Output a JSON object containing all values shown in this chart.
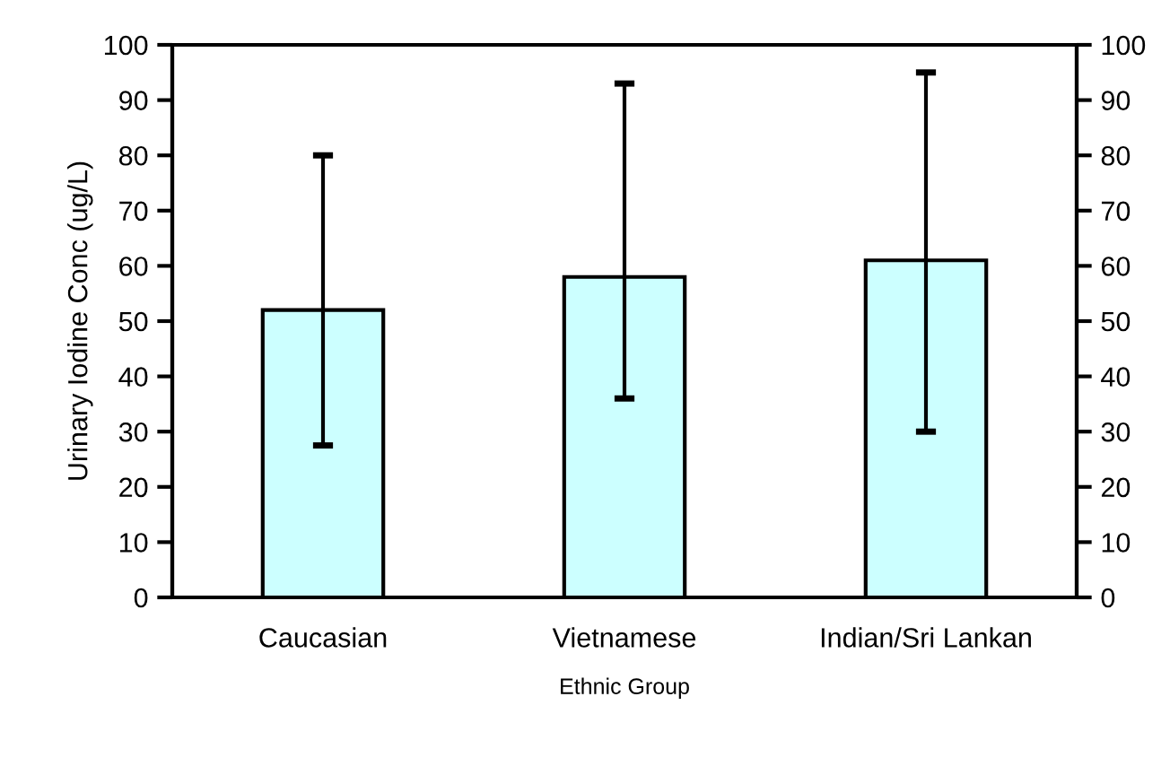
{
  "chart_data": {
    "type": "bar",
    "xlabel": "Ethnic Group",
    "ylabel": "Urinary Iodine Conc (ug/L)",
    "categories": [
      "Caucasian",
      "Vietnamese",
      "Indian/Sri Lankan"
    ],
    "values": [
      52,
      58,
      61
    ],
    "errors": [
      [
        27.5,
        80
      ],
      [
        36,
        93
      ],
      [
        30,
        95
      ]
    ],
    "color": "#ccffff",
    "ylim": [
      0,
      100
    ],
    "yticks": [
      0,
      10,
      20,
      30,
      40,
      50,
      60,
      70,
      80,
      90,
      100
    ],
    "y2lim": [
      0,
      100
    ],
    "y2ticks": [
      0,
      10,
      20,
      30,
      40,
      50,
      60,
      70,
      80,
      90,
      100
    ],
    "grid": false,
    "legend": false
  }
}
